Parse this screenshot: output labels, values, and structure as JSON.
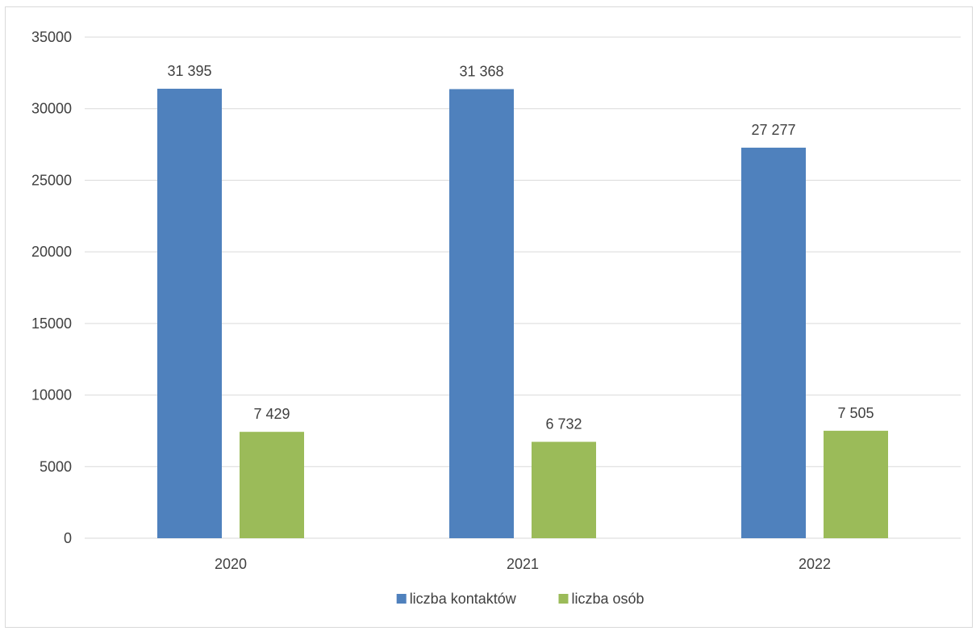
{
  "chart_data": {
    "type": "bar",
    "title": "",
    "xlabel": "",
    "ylabel": "",
    "categories": [
      "2020",
      "2021",
      "2022"
    ],
    "series": [
      {
        "name": "liczba kontaktów",
        "color": "#4f81bd",
        "values": [
          31395,
          31368,
          27277
        ],
        "labels": [
          "31 395",
          "31 368",
          "27 277"
        ]
      },
      {
        "name": "liczba osób",
        "color": "#9bbb59",
        "values": [
          7429,
          6732,
          7505
        ],
        "labels": [
          "7 429",
          "6 732",
          "7 505"
        ]
      }
    ],
    "ylim": [
      0,
      35000
    ],
    "yticks": [
      "0",
      "5000",
      "10000",
      "15000",
      "20000",
      "25000",
      "30000",
      "35000"
    ],
    "grid": true,
    "gridColor": "#d9d9d9",
    "legend": "bottom"
  }
}
